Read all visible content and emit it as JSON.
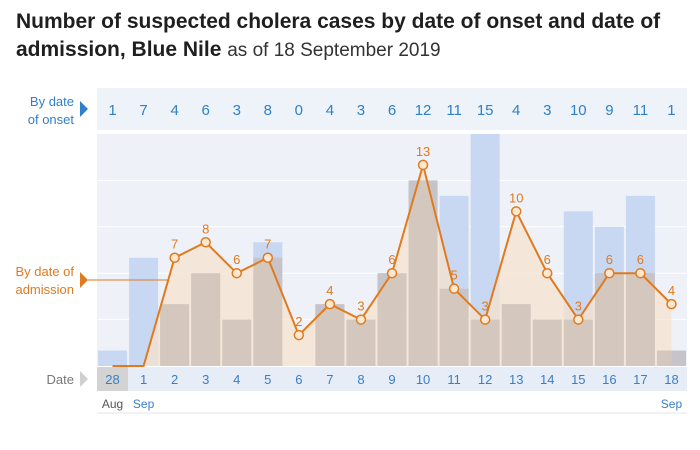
{
  "title": {
    "main": "Number of suspected cholera cases by date of onset and date of admission, Blue Nile",
    "sub": "as of 18 September 2019"
  },
  "labels": {
    "onset_line1": "By date",
    "onset_line2": "of onset",
    "admission_line1": "By date of",
    "admission_line2": "admission",
    "date": "Date"
  },
  "colors": {
    "onset_bar": "#c9d8f2",
    "admission_bar": "#c4b8ad",
    "admission_line": "#e07a1f",
    "admission_area": "#f6e3cf",
    "header_blue": "#2f80c8",
    "plot_bg": "#eef1f8"
  },
  "chart_data": {
    "type": "bar",
    "categories": [
      "28",
      "1",
      "2",
      "3",
      "4",
      "5",
      "6",
      "7",
      "8",
      "9",
      "10",
      "11",
      "12",
      "13",
      "14",
      "15",
      "16",
      "17",
      "18"
    ],
    "months": [
      {
        "label": "Aug",
        "at": "28"
      },
      {
        "label": "Sep",
        "at": "1"
      },
      {
        "label": "Sep",
        "at": "18"
      }
    ],
    "series": [
      {
        "name": "By date of onset",
        "values": [
          1,
          7,
          4,
          6,
          3,
          8,
          0,
          4,
          3,
          6,
          12,
          11,
          15,
          4,
          3,
          10,
          9,
          11,
          1
        ]
      },
      {
        "name": "By date of admission",
        "values": [
          0,
          0,
          7,
          8,
          6,
          7,
          2,
          4,
          3,
          6,
          13,
          5,
          3,
          10,
          6,
          3,
          6,
          6,
          4
        ]
      }
    ],
    "admission_labels_shown": [
      false,
      false,
      true,
      true,
      true,
      true,
      true,
      true,
      true,
      true,
      true,
      true,
      true,
      true,
      true,
      true,
      true,
      true,
      true
    ],
    "ylim": [
      0,
      15
    ]
  }
}
